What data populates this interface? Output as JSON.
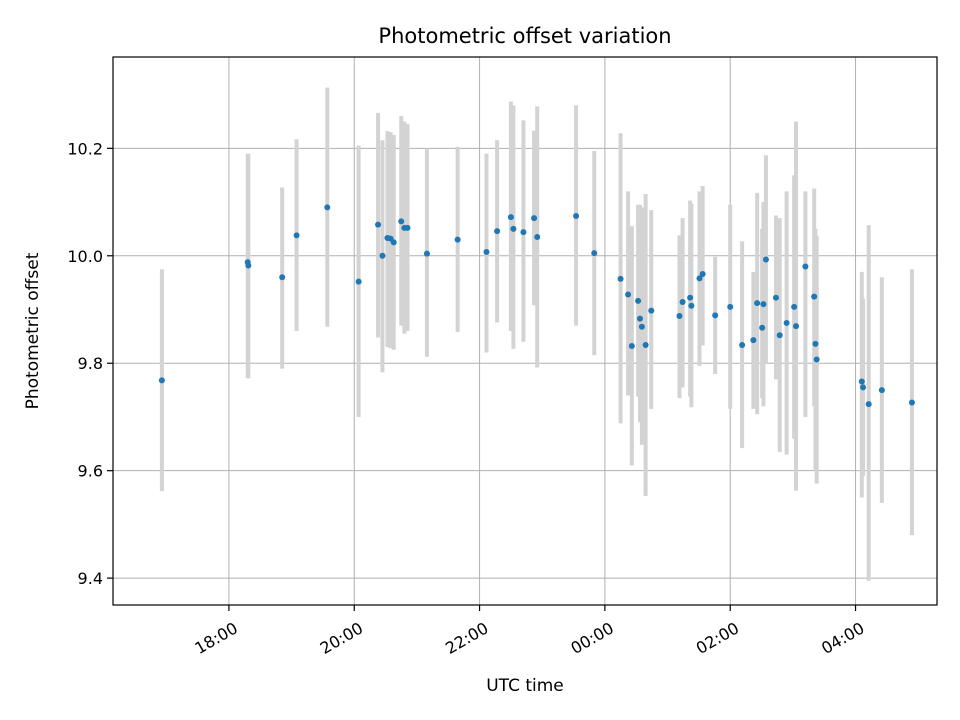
{
  "chart_data": {
    "type": "scatter",
    "title": "Photometric offset variation",
    "xlabel": "UTC time",
    "ylabel": "Photometric offset",
    "x_unit": "hours relative to 00:00 UTC",
    "xlim": [
      -7.85,
      5.3
    ],
    "ylim": [
      9.35,
      10.37
    ],
    "xticks": [
      {
        "value": -6,
        "label": "18:00"
      },
      {
        "value": -4,
        "label": "20:00"
      },
      {
        "value": -2,
        "label": "22:00"
      },
      {
        "value": 0,
        "label": "00:00"
      },
      {
        "value": 2,
        "label": "02:00"
      },
      {
        "value": 4,
        "label": "04:00"
      }
    ],
    "yticks": [
      {
        "value": 9.4,
        "label": "9.4"
      },
      {
        "value": 9.6,
        "label": "9.6"
      },
      {
        "value": 9.8,
        "label": "9.8"
      },
      {
        "value": 10.0,
        "label": "10.0"
      },
      {
        "value": 10.2,
        "label": "10.2"
      }
    ],
    "grid": true,
    "point_color": "#1f77b4",
    "errorbar_color": "#d3d3d3",
    "points": [
      {
        "x": -7.07,
        "y": 9.768,
        "lo": 9.562,
        "hi": 9.975
      },
      {
        "x": -5.7,
        "y": 9.988,
        "lo": 9.772,
        "hi": 10.19
      },
      {
        "x": -5.69,
        "y": 9.982,
        "lo": 9.772,
        "hi": 10.19
      },
      {
        "x": -5.15,
        "y": 9.96,
        "lo": 9.79,
        "hi": 10.127
      },
      {
        "x": -4.92,
        "y": 10.038,
        "lo": 9.86,
        "hi": 10.217
      },
      {
        "x": -4.43,
        "y": 10.09,
        "lo": 9.868,
        "hi": 10.313
      },
      {
        "x": -3.93,
        "y": 9.952,
        "lo": 9.7,
        "hi": 10.205
      },
      {
        "x": -3.62,
        "y": 10.058,
        "lo": 9.848,
        "hi": 10.266
      },
      {
        "x": -3.55,
        "y": 10.0,
        "lo": 9.783,
        "hi": 10.215
      },
      {
        "x": -3.47,
        "y": 10.033,
        "lo": 9.83,
        "hi": 10.232
      },
      {
        "x": -3.42,
        "y": 10.032,
        "lo": 9.828,
        "hi": 10.23
      },
      {
        "x": -3.37,
        "y": 10.025,
        "lo": 9.825,
        "hi": 10.225
      },
      {
        "x": -3.25,
        "y": 10.064,
        "lo": 9.87,
        "hi": 10.26
      },
      {
        "x": -3.2,
        "y": 10.052,
        "lo": 9.855,
        "hi": 10.25
      },
      {
        "x": -3.15,
        "y": 10.052,
        "lo": 9.86,
        "hi": 10.245
      },
      {
        "x": -2.84,
        "y": 10.004,
        "lo": 9.812,
        "hi": 10.2
      },
      {
        "x": -2.35,
        "y": 10.03,
        "lo": 9.858,
        "hi": 10.203
      },
      {
        "x": -1.89,
        "y": 10.007,
        "lo": 9.82,
        "hi": 10.19
      },
      {
        "x": -1.72,
        "y": 10.046,
        "lo": 9.876,
        "hi": 10.215
      },
      {
        "x": -1.5,
        "y": 10.072,
        "lo": 9.86,
        "hi": 10.287
      },
      {
        "x": -1.46,
        "y": 10.05,
        "lo": 9.827,
        "hi": 10.28
      },
      {
        "x": -1.3,
        "y": 10.044,
        "lo": 9.84,
        "hi": 10.252
      },
      {
        "x": -1.13,
        "y": 10.07,
        "lo": 9.908,
        "hi": 10.233
      },
      {
        "x": -1.08,
        "y": 10.035,
        "lo": 9.792,
        "hi": 10.278
      },
      {
        "x": -0.46,
        "y": 10.074,
        "lo": 9.87,
        "hi": 10.28
      },
      {
        "x": -0.17,
        "y": 10.005,
        "lo": 9.815,
        "hi": 10.195
      },
      {
        "x": 0.25,
        "y": 9.957,
        "lo": 9.688,
        "hi": 10.228
      },
      {
        "x": 0.37,
        "y": 9.928,
        "lo": 9.74,
        "hi": 10.12
      },
      {
        "x": 0.43,
        "y": 9.832,
        "lo": 9.61,
        "hi": 10.055
      },
      {
        "x": 0.53,
        "y": 9.916,
        "lo": 9.738,
        "hi": 10.095
      },
      {
        "x": 0.56,
        "y": 9.883,
        "lo": 9.69,
        "hi": 10.095
      },
      {
        "x": 0.59,
        "y": 9.868,
        "lo": 9.648,
        "hi": 10.09
      },
      {
        "x": 0.65,
        "y": 9.834,
        "lo": 9.553,
        "hi": 10.115
      },
      {
        "x": 0.74,
        "y": 9.898,
        "lo": 9.715,
        "hi": 10.085
      },
      {
        "x": 1.19,
        "y": 9.888,
        "lo": 9.735,
        "hi": 10.038
      },
      {
        "x": 1.24,
        "y": 9.914,
        "lo": 9.755,
        "hi": 10.07
      },
      {
        "x": 1.36,
        "y": 9.922,
        "lo": 9.738,
        "hi": 10.103
      },
      {
        "x": 1.38,
        "y": 9.907,
        "lo": 9.718,
        "hi": 10.097
      },
      {
        "x": 1.51,
        "y": 9.958,
        "lo": 9.795,
        "hi": 10.12
      },
      {
        "x": 1.56,
        "y": 9.966,
        "lo": 9.833,
        "hi": 10.13
      },
      {
        "x": 1.76,
        "y": 9.889,
        "lo": 9.78,
        "hi": 9.998
      },
      {
        "x": 2.0,
        "y": 9.905,
        "lo": 9.715,
        "hi": 10.095
      },
      {
        "x": 2.19,
        "y": 9.834,
        "lo": 9.642,
        "hi": 10.027
      },
      {
        "x": 2.37,
        "y": 9.843,
        "lo": 9.715,
        "hi": 9.97
      },
      {
        "x": 2.43,
        "y": 9.912,
        "lo": 9.705,
        "hi": 10.117
      },
      {
        "x": 2.51,
        "y": 9.866,
        "lo": 9.735,
        "hi": 10.05
      },
      {
        "x": 2.53,
        "y": 9.91,
        "lo": 9.72,
        "hi": 10.1
      },
      {
        "x": 2.57,
        "y": 9.993,
        "lo": 9.8,
        "hi": 10.187
      },
      {
        "x": 2.73,
        "y": 9.922,
        "lo": 9.77,
        "hi": 10.075
      },
      {
        "x": 2.79,
        "y": 9.852,
        "lo": 9.635,
        "hi": 10.07
      },
      {
        "x": 2.9,
        "y": 9.875,
        "lo": 9.63,
        "hi": 10.12
      },
      {
        "x": 3.02,
        "y": 9.905,
        "lo": 9.66,
        "hi": 10.15
      },
      {
        "x": 3.05,
        "y": 9.869,
        "lo": 9.563,
        "hi": 10.25
      },
      {
        "x": 3.2,
        "y": 9.98,
        "lo": 9.7,
        "hi": 10.12
      },
      {
        "x": 3.34,
        "y": 9.924,
        "lo": 9.72,
        "hi": 10.125
      },
      {
        "x": 3.36,
        "y": 9.836,
        "lo": 9.6,
        "hi": 10.05
      },
      {
        "x": 3.38,
        "y": 9.807,
        "lo": 9.576,
        "hi": 10.037
      },
      {
        "x": 4.1,
        "y": 9.766,
        "lo": 9.55,
        "hi": 9.97
      },
      {
        "x": 4.12,
        "y": 9.755,
        "lo": 9.59,
        "hi": 9.92
      },
      {
        "x": 4.21,
        "y": 9.724,
        "lo": 9.395,
        "hi": 10.057
      },
      {
        "x": 4.42,
        "y": 9.75,
        "lo": 9.54,
        "hi": 9.96
      },
      {
        "x": 4.9,
        "y": 9.727,
        "lo": 9.48,
        "hi": 9.975
      }
    ]
  }
}
